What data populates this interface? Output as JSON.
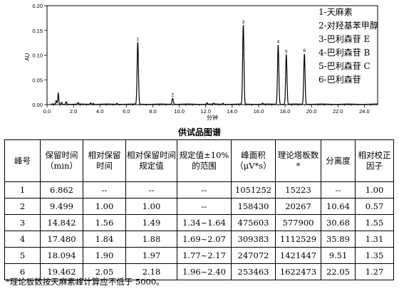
{
  "chart_data": {
    "type": "line",
    "title": "",
    "xlabel": "分钟",
    "ylabel": "AU",
    "xlim": [
      0.0,
      25.0
    ],
    "ylim": [
      0.0,
      0.2
    ],
    "x_ticks": [
      "0.0",
      "2.0",
      "4.0",
      "6.0",
      "8.0",
      "10.0",
      "12.0",
      "14.0",
      "16.0",
      "18.0",
      "20.0",
      "22.0",
      "24.0"
    ],
    "y_ticks": [
      "0.00",
      "0.05",
      "0.10",
      "0.15",
      "0.20"
    ],
    "peaks": [
      {
        "label": "1",
        "x": 6.862,
        "y": 0.125
      },
      {
        "label": "2",
        "x": 9.499,
        "y": 0.012
      },
      {
        "label": "3",
        "x": 14.842,
        "y": 0.16
      },
      {
        "label": "4",
        "x": 17.48,
        "y": 0.12
      },
      {
        "label": "5",
        "x": 18.094,
        "y": 0.1
      },
      {
        "label": "6",
        "x": 19.462,
        "y": 0.102
      }
    ],
    "minor_peaks": [
      {
        "x": 0.7,
        "y": 0.007
      },
      {
        "x": 0.85,
        "y": 0.022
      },
      {
        "x": 1.1,
        "y": 0.004
      },
      {
        "x": 1.45,
        "y": 0.005
      },
      {
        "x": 2.35,
        "y": 0.003
      },
      {
        "x": 3.3,
        "y": 0.003
      },
      {
        "x": 3.5,
        "y": 0.002
      },
      {
        "x": 5.3,
        "y": 0.002
      },
      {
        "x": 12.1,
        "y": 0.003
      },
      {
        "x": 12.6,
        "y": 0.002
      },
      {
        "x": 13.3,
        "y": 0.002
      },
      {
        "x": 16.3,
        "y": 0.002
      }
    ],
    "legend": [
      "1-天麻素",
      "2-对羟基苯甲醇",
      "3-巴利森苷 E",
      "4-巴利森苷 B",
      "5-巴利森苷 C",
      "6-巴利森苷"
    ]
  },
  "caption": "供试品图谱",
  "table": {
    "headers": [
      "峰号",
      "保留时间（min）",
      "相对保留时间",
      "相对保留时间规定值",
      "规定值±10%的范围",
      "峰面积（μV*s）",
      "理论塔板数*",
      "分离度",
      "相对校正因子"
    ],
    "rows": [
      [
        "1",
        "6.862",
        "--",
        "--",
        "--",
        "1051252",
        "15223",
        "--",
        "1.00"
      ],
      [
        "2",
        "9.499",
        "1.00",
        "1.00",
        "--",
        "158430",
        "20267",
        "10.64",
        "0.57"
      ],
      [
        "3",
        "14.842",
        "1.56",
        "1.49",
        "1.34~1.64",
        "475603",
        "577900",
        "30.68",
        "1.55"
      ],
      [
        "4",
        "17.480",
        "1.84",
        "1.88",
        "1.69~2.07",
        "309383",
        "1112529",
        "35.89",
        "1.31"
      ],
      [
        "5",
        "18.094",
        "1.90",
        "1.97",
        "1.77~2.17",
        "247072",
        "1421447",
        "9.51",
        "1.35"
      ],
      [
        "6",
        "19.462",
        "2.05",
        "2.18",
        "1.96~2.40",
        "253463",
        "1622473",
        "22.05",
        "1.27"
      ]
    ]
  },
  "footnote": "*理论板数按天麻素峰计算应不低于 5000。"
}
